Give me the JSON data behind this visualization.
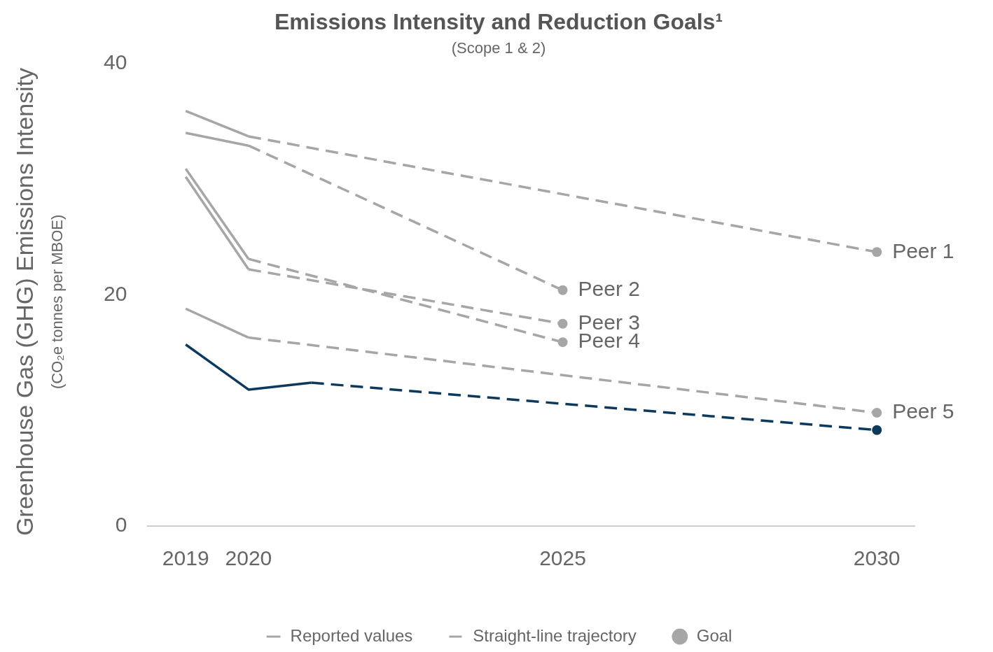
{
  "chart_data": {
    "type": "line",
    "title": "Emissions Intensity and Reduction Goals¹",
    "subtitle": "(Scope 1 & 2)",
    "ylabel": "Greenhouse Gas (GHG) Emissions Intensity",
    "xlim": [
      2018.4,
      2030.6
    ],
    "xticks": [
      2019,
      2020,
      2025,
      2030
    ],
    "ylim": [
      0,
      40
    ],
    "yticks": [
      0,
      20,
      40
    ],
    "grid": false,
    "legend": "bottom",
    "series": [
      {
        "name": "Reported values",
        "type": "line",
        "line_style": "solid",
        "marker": "none",
        "color": "#a6a6a6",
        "x": [
          2019,
          2020
        ],
        "values": [
          35.9,
          33.7
        ]
      },
      {
        "type": "line",
        "line_style": "solid",
        "marker": "none",
        "color": "#a6a6a6",
        "x": [
          2019,
          2020
        ],
        "values": [
          34.0,
          32.9
        ]
      },
      {
        "type": "line",
        "line_style": "solid",
        "marker": "none",
        "color": "#a6a6a6",
        "x": [
          2019,
          2020
        ],
        "values": [
          30.2,
          22.2
        ]
      },
      {
        "type": "line",
        "line_style": "solid",
        "marker": "none",
        "color": "#a6a6a6",
        "x": [
          2019,
          2020
        ],
        "values": [
          30.9,
          23.1
        ]
      },
      {
        "type": "line",
        "line_style": "solid",
        "marker": "none",
        "color": "#a6a6a6",
        "x": [
          2019,
          2020
        ],
        "values": [
          18.8,
          16.3
        ]
      },
      {
        "name": "Straight-line trajectory",
        "type": "line",
        "line_style": "dashed",
        "marker": "none",
        "color": "#a6a6a6",
        "x": [
          2020,
          2030
        ],
        "values": [
          33.7,
          23.7
        ]
      },
      {
        "type": "line",
        "line_style": "dashed",
        "marker": "none",
        "color": "#a6a6a6",
        "x": [
          2020,
          2025
        ],
        "values": [
          32.9,
          20.4
        ]
      },
      {
        "type": "line",
        "line_style": "dashed",
        "marker": "none",
        "color": "#a6a6a6",
        "x": [
          2020,
          2025
        ],
        "values": [
          22.2,
          17.5
        ]
      },
      {
        "type": "line",
        "line_style": "dashed",
        "marker": "none",
        "color": "#a6a6a6",
        "x": [
          2020,
          2025
        ],
        "values": [
          23.1,
          15.9
        ]
      },
      {
        "type": "line",
        "line_style": "dashed",
        "marker": "none",
        "color": "#a6a6a6",
        "x": [
          2020,
          2030
        ],
        "values": [
          16.3,
          9.8
        ]
      },
      {
        "name": "Goal",
        "type": "scatter",
        "marker": "circle",
        "color": "#a6a6a6",
        "x": [
          2030,
          2025,
          2025,
          2025,
          2030
        ],
        "values": [
          23.7,
          20.4,
          17.5,
          15.9,
          9.8
        ]
      },
      {
        "type": "line",
        "line_style": "solid",
        "marker": "none",
        "color": "#0d3a5c",
        "x": [
          2019,
          2020,
          2021
        ],
        "values": [
          15.7,
          11.8,
          12.4
        ]
      },
      {
        "type": "line",
        "line_style": "dashed",
        "marker": "none",
        "color": "#0d3a5c",
        "x": [
          2021,
          2030
        ],
        "values": [
          12.4,
          8.3
        ]
      },
      {
        "type": "scatter",
        "marker": "circle",
        "color": "#0d3a5c",
        "x": [
          2030
        ],
        "values": [
          8.3
        ]
      }
    ],
    "annotations": [
      "(CO₂e tonnes per MBOE)",
      "Peer 1",
      "Peer 2",
      "Peer 3",
      "Peer 4",
      "Peer 5"
    ]
  }
}
